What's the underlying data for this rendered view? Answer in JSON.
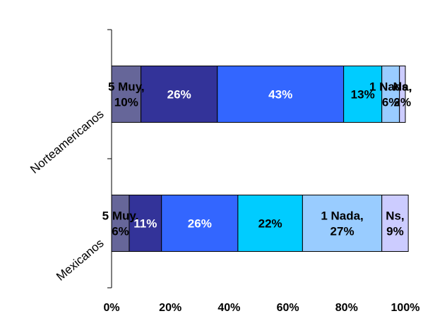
{
  "chart_data": {
    "type": "bar",
    "orientation": "horizontal",
    "stacked": true,
    "percent": true,
    "categories": [
      "Norteamericanos",
      "Mexicanos"
    ],
    "series": [
      {
        "name": "5 Muy",
        "values": [
          10,
          6
        ],
        "color": "#666699",
        "labels": [
          "5 Muy,\n10%",
          "5 Muy,\n6%"
        ],
        "label_color": "#000000"
      },
      {
        "values": [
          26,
          11
        ],
        "color": "#333399",
        "labels": [
          "26%",
          "11%"
        ],
        "label_color": "#ffffff"
      },
      {
        "values": [
          43,
          26
        ],
        "color": "#3366ff",
        "labels": [
          "43%",
          "26%"
        ],
        "label_color": "#ffffff"
      },
      {
        "values": [
          13,
          22
        ],
        "color": "#00ccff",
        "labels": [
          "13%",
          "22%"
        ],
        "label_color": "#000000"
      },
      {
        "name": "1 Nada",
        "values": [
          6,
          27
        ],
        "color": "#99ccff",
        "labels": [
          "1 Nada,\n6%",
          "1 Nada,\n27%"
        ],
        "label_color": "#000000"
      },
      {
        "name": "Ns",
        "values": [
          2,
          9
        ],
        "color": "#ccccff",
        "labels": [
          "Ns,\n2%",
          "Ns,\n9%"
        ],
        "label_color": "#000000"
      }
    ],
    "xlim": [
      0,
      100
    ],
    "x_ticks": [
      "0%",
      "20%",
      "40%",
      "60%",
      "80%",
      "100%"
    ],
    "grid": false,
    "legend": "none"
  }
}
